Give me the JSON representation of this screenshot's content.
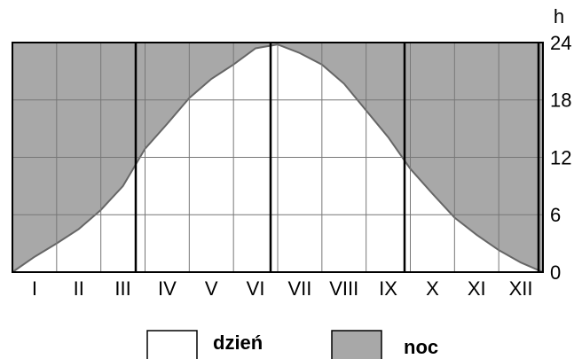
{
  "chart_data": {
    "type": "area",
    "y_label": "h",
    "categories": [
      "I",
      "II",
      "III",
      "IV",
      "V",
      "VI",
      "VII",
      "VIII",
      "IX",
      "X",
      "XI",
      "XII"
    ],
    "x": [
      0,
      0.5,
      1,
      1.5,
      2,
      2.5,
      3,
      3.5,
      4,
      4.5,
      5,
      5.5,
      6,
      6.5,
      7,
      7.5,
      8,
      8.5,
      9,
      9.5,
      10,
      10.5,
      11,
      11.5,
      12
    ],
    "xlim": [
      0,
      12
    ],
    "series": [
      {
        "name": "dzień",
        "color": "#ffffff",
        "values": [
          0,
          1.6,
          3,
          4.5,
          6.5,
          9,
          12.9,
          15.5,
          18.2,
          20.2,
          21.7,
          23.4,
          23.8,
          22.9,
          21.7,
          19.7,
          16.9,
          14.1,
          10.8,
          8.2,
          5.7,
          3.9,
          2.3,
          1,
          0
        ]
      }
    ],
    "night": {
      "name": "noc",
      "color": "#a8a8a8"
    },
    "ylim": [
      0,
      24
    ],
    "yticks": [
      0,
      6,
      12,
      18,
      24
    ],
    "grid": true
  }
}
